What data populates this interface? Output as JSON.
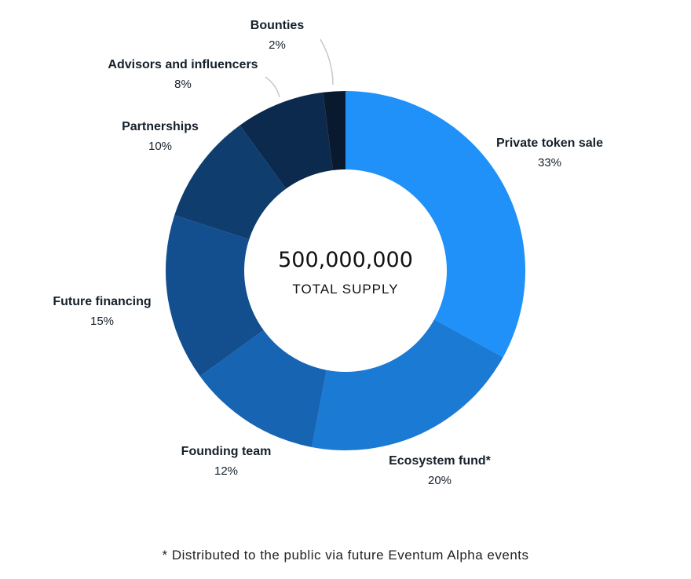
{
  "chart_data": {
    "type": "pie",
    "categories": [
      "Private token sale",
      "Ecosystem fund*",
      "Founding team",
      "Future financing",
      "Partnerships",
      "Advisors and influencers",
      "Bounties"
    ],
    "values": [
      33,
      20,
      12,
      15,
      10,
      8,
      2
    ],
    "labels": [
      "33%",
      "20%",
      "12%",
      "15%",
      "10%",
      "8%",
      "2%"
    ],
    "colors": [
      "#1f91f9",
      "#1a7ad4",
      "#1664b2",
      "#134f8f",
      "#0f3e6e",
      "#0c2a4e",
      "#0a1a2e"
    ],
    "center": {
      "value": "500,000,000",
      "label": "TOTAL SUPPLY"
    }
  },
  "footnote": "* Distributed to the public via future Eventum Alpha events"
}
